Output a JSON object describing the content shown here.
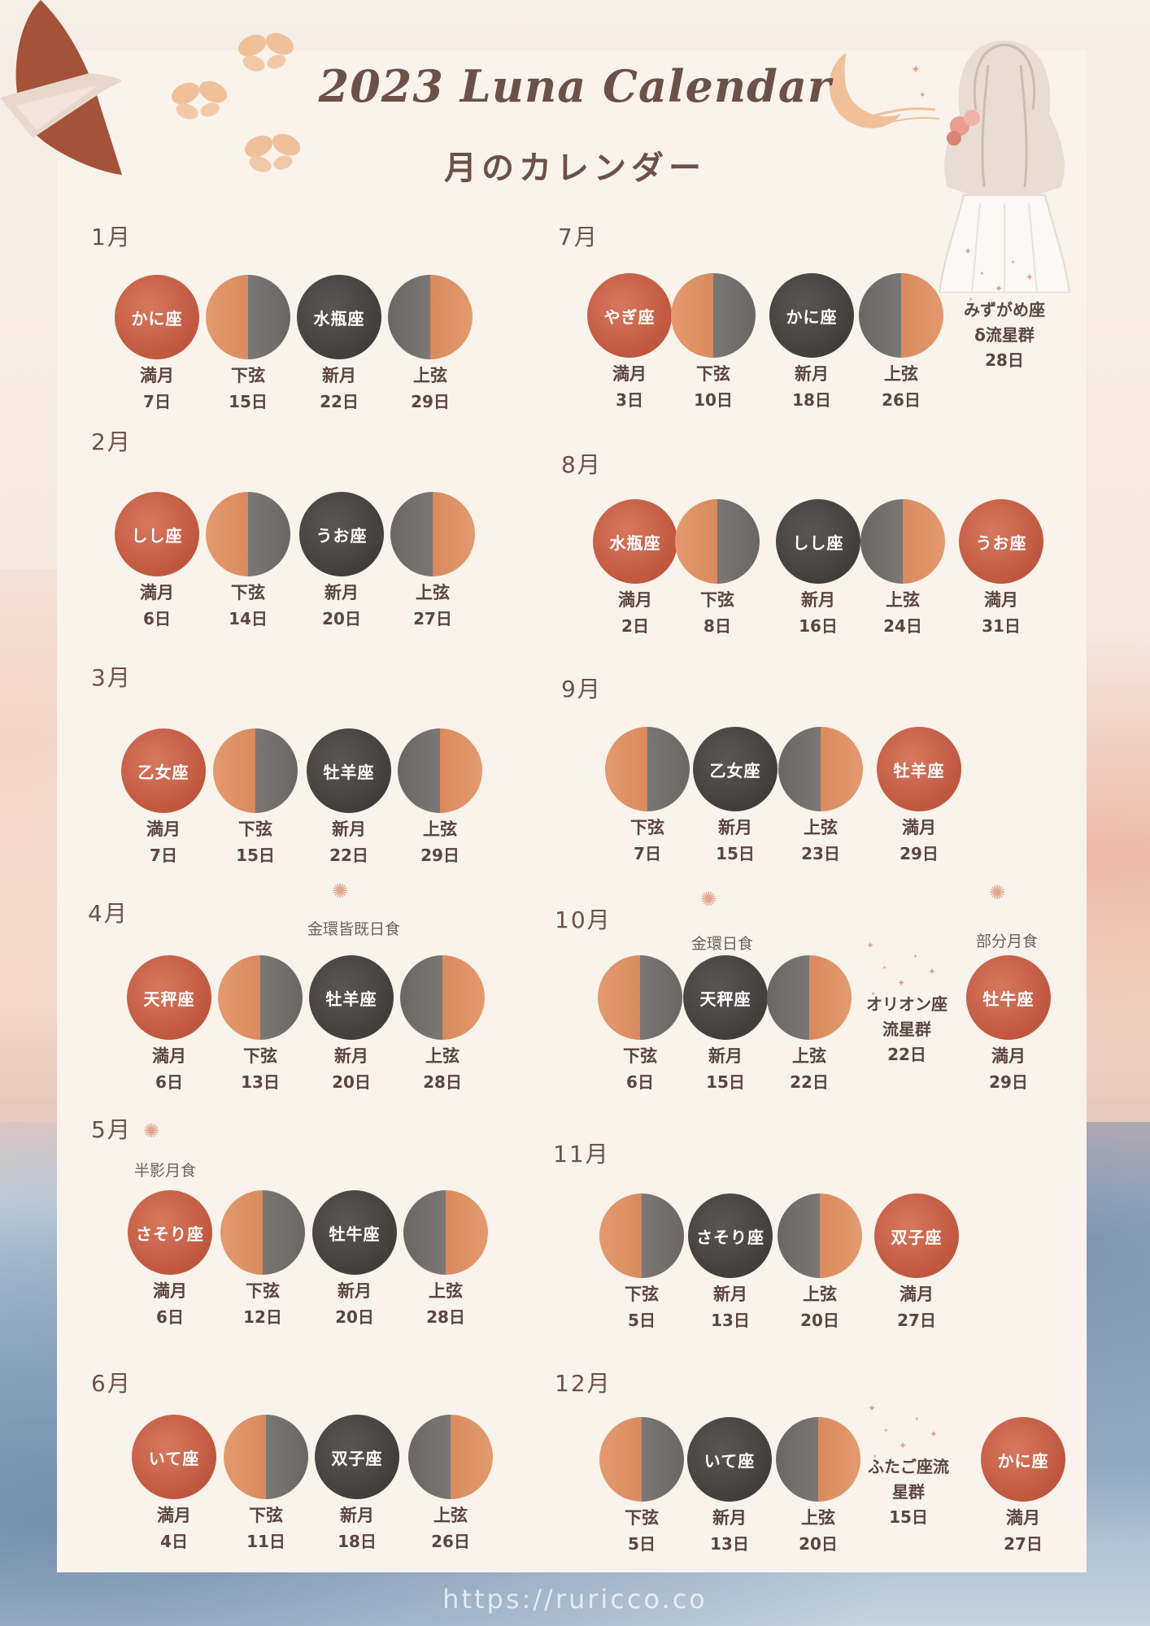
{
  "header": {
    "title": "2023 Luna Calendar",
    "subtitle": "月のカレンダー"
  },
  "footer": {
    "url": "https://ruricco.co"
  },
  "colors": {
    "full_moon": "#c0573f",
    "new_moon": "#423e3c",
    "half_orange": "#d98a5e",
    "half_gray": "#7a7775",
    "text": "#5a463e"
  },
  "months": [
    {
      "label": "1月",
      "moons": [
        {
          "phase": "満月",
          "day": "7日",
          "sign": "かに座",
          "type": "full"
        },
        {
          "phase": "下弦",
          "day": "15日",
          "sign": "",
          "type": "lastq"
        },
        {
          "phase": "新月",
          "day": "22日",
          "sign": "水瓶座",
          "type": "new"
        },
        {
          "phase": "上弦",
          "day": "29日",
          "sign": "",
          "type": "firstq"
        }
      ]
    },
    {
      "label": "2月",
      "moons": [
        {
          "phase": "満月",
          "day": "6日",
          "sign": "しし座",
          "type": "full"
        },
        {
          "phase": "下弦",
          "day": "14日",
          "sign": "",
          "type": "lastq"
        },
        {
          "phase": "新月",
          "day": "20日",
          "sign": "うお座",
          "type": "new"
        },
        {
          "phase": "上弦",
          "day": "27日",
          "sign": "",
          "type": "firstq"
        }
      ]
    },
    {
      "label": "3月",
      "moons": [
        {
          "phase": "満月",
          "day": "7日",
          "sign": "乙女座",
          "type": "full"
        },
        {
          "phase": "下弦",
          "day": "15日",
          "sign": "",
          "type": "lastq"
        },
        {
          "phase": "新月",
          "day": "22日",
          "sign": "牡羊座",
          "type": "new"
        },
        {
          "phase": "上弦",
          "day": "29日",
          "sign": "",
          "type": "firstq"
        }
      ]
    },
    {
      "label": "4月",
      "note": "金環皆既日食",
      "moons": [
        {
          "phase": "満月",
          "day": "6日",
          "sign": "天秤座",
          "type": "full"
        },
        {
          "phase": "下弦",
          "day": "13日",
          "sign": "",
          "type": "lastq"
        },
        {
          "phase": "新月",
          "day": "20日",
          "sign": "牡羊座",
          "type": "new"
        },
        {
          "phase": "上弦",
          "day": "28日",
          "sign": "",
          "type": "firstq"
        }
      ]
    },
    {
      "label": "5月",
      "note": "半影月食",
      "moons": [
        {
          "phase": "満月",
          "day": "6日",
          "sign": "さそり座",
          "type": "full"
        },
        {
          "phase": "下弦",
          "day": "12日",
          "sign": "",
          "type": "lastq"
        },
        {
          "phase": "新月",
          "day": "20日",
          "sign": "牡牛座",
          "type": "new"
        },
        {
          "phase": "上弦",
          "day": "28日",
          "sign": "",
          "type": "firstq"
        }
      ]
    },
    {
      "label": "6月",
      "moons": [
        {
          "phase": "満月",
          "day": "4日",
          "sign": "いて座",
          "type": "full"
        },
        {
          "phase": "下弦",
          "day": "11日",
          "sign": "",
          "type": "lastq"
        },
        {
          "phase": "新月",
          "day": "18日",
          "sign": "双子座",
          "type": "new"
        },
        {
          "phase": "上弦",
          "day": "26日",
          "sign": "",
          "type": "firstq"
        }
      ]
    },
    {
      "label": "7月",
      "event": {
        "lines": [
          "みずがめ座",
          "δ流星群",
          "28日"
        ]
      },
      "moons": [
        {
          "phase": "満月",
          "day": "3日",
          "sign": "やぎ座",
          "type": "full"
        },
        {
          "phase": "下弦",
          "day": "10日",
          "sign": "",
          "type": "lastq"
        },
        {
          "phase": "新月",
          "day": "18日",
          "sign": "かに座",
          "type": "new"
        },
        {
          "phase": "上弦",
          "day": "26日",
          "sign": "",
          "type": "firstq"
        }
      ]
    },
    {
      "label": "8月",
      "moons": [
        {
          "phase": "満月",
          "day": "2日",
          "sign": "水瓶座",
          "type": "full"
        },
        {
          "phase": "下弦",
          "day": "8日",
          "sign": "",
          "type": "lastq"
        },
        {
          "phase": "新月",
          "day": "16日",
          "sign": "しし座",
          "type": "new"
        },
        {
          "phase": "上弦",
          "day": "24日",
          "sign": "",
          "type": "firstq"
        },
        {
          "phase": "満月",
          "day": "31日",
          "sign": "うお座",
          "type": "full"
        }
      ]
    },
    {
      "label": "9月",
      "moons": [
        {
          "phase": "下弦",
          "day": "7日",
          "sign": "",
          "type": "lastq"
        },
        {
          "phase": "新月",
          "day": "15日",
          "sign": "乙女座",
          "type": "new"
        },
        {
          "phase": "上弦",
          "day": "23日",
          "sign": "",
          "type": "firstq"
        },
        {
          "phase": "満月",
          "day": "29日",
          "sign": "牡羊座",
          "type": "full"
        }
      ]
    },
    {
      "label": "10月",
      "note": "金環日食",
      "note2": "部分月食",
      "event": {
        "lines": [
          "オリオン座",
          "流星群",
          "22日"
        ]
      },
      "moons": [
        {
          "phase": "下弦",
          "day": "6日",
          "sign": "",
          "type": "lastq"
        },
        {
          "phase": "新月",
          "day": "15日",
          "sign": "天秤座",
          "type": "new"
        },
        {
          "phase": "上弦",
          "day": "22日",
          "sign": "",
          "type": "firstq"
        },
        {
          "phase": "満月",
          "day": "29日",
          "sign": "牡牛座",
          "type": "full"
        }
      ]
    },
    {
      "label": "11月",
      "moons": [
        {
          "phase": "下弦",
          "day": "5日",
          "sign": "",
          "type": "lastq"
        },
        {
          "phase": "新月",
          "day": "13日",
          "sign": "さそり座",
          "type": "new"
        },
        {
          "phase": "上弦",
          "day": "20日",
          "sign": "",
          "type": "firstq"
        },
        {
          "phase": "満月",
          "day": "27日",
          "sign": "双子座",
          "type": "full"
        }
      ]
    },
    {
      "label": "12月",
      "event": {
        "lines": [
          "ふたご座流",
          "星群",
          "15日"
        ]
      },
      "moons": [
        {
          "phase": "下弦",
          "day": "5日",
          "sign": "",
          "type": "lastq"
        },
        {
          "phase": "新月",
          "day": "13日",
          "sign": "いて座",
          "type": "new"
        },
        {
          "phase": "上弦",
          "day": "20日",
          "sign": "",
          "type": "firstq"
        },
        {
          "phase": "満月",
          "day": "27日",
          "sign": "かに座",
          "type": "full"
        }
      ]
    }
  ]
}
